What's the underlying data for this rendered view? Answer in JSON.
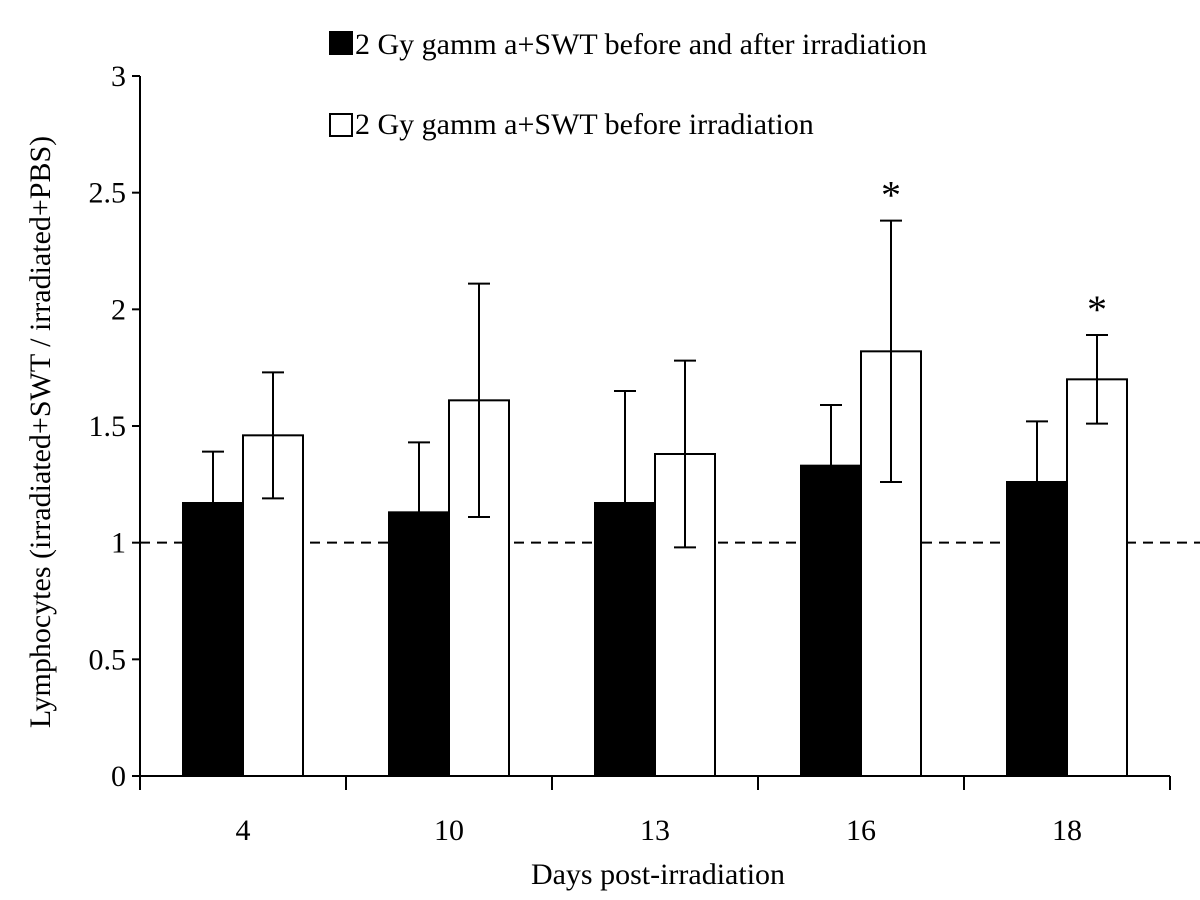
{
  "chart_data": {
    "type": "bar",
    "title": "",
    "xlabel": "Days  post-irradiation",
    "ylabel": "Lymphocytes (irradiated+SWT / irradiated+PBS)",
    "categories": [
      "4",
      "10",
      "13",
      "16",
      "18"
    ],
    "ylim": [
      0,
      3
    ],
    "yticks": [
      "0",
      "0.5",
      "1",
      "1.5",
      "2",
      "2.5",
      "3"
    ],
    "grid": false,
    "legend_position": "top",
    "reference_line": {
      "y": 1,
      "style": "dashed"
    },
    "series": [
      {
        "name": "2 Gy gamm a+SWT before and after irradiation",
        "color": "#000000",
        "values": [
          1.17,
          1.13,
          1.17,
          1.33,
          1.26
        ],
        "errors": [
          0.22,
          0.3,
          0.48,
          0.26,
          0.26
        ]
      },
      {
        "name": "2 Gy gamm a+SWT before irradiation",
        "color": "#ffffff",
        "values": [
          1.46,
          1.61,
          1.38,
          1.82,
          1.7
        ],
        "errors": [
          0.27,
          0.5,
          0.4,
          0.56,
          0.19
        ]
      }
    ],
    "annotations": [
      {
        "category": "16",
        "series": 1,
        "text": "*"
      },
      {
        "category": "18",
        "series": 1,
        "text": "*"
      }
    ]
  }
}
